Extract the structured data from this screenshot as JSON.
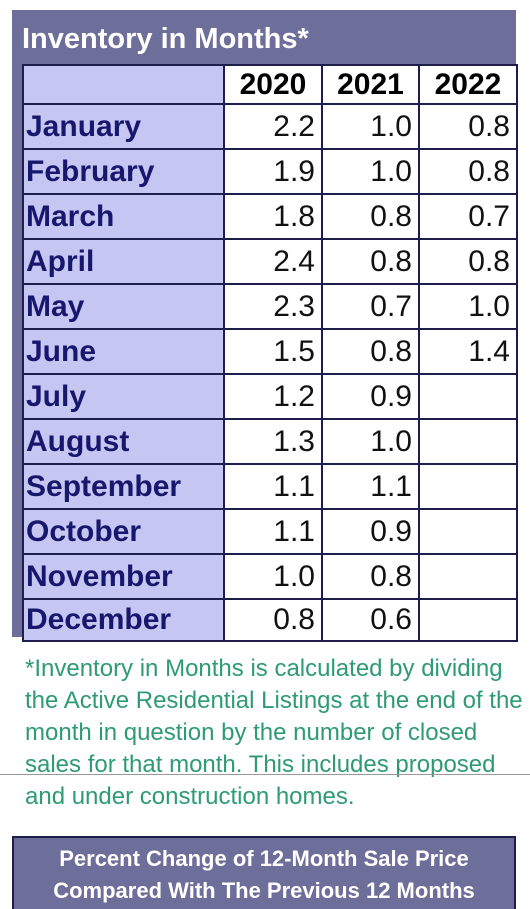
{
  "panel": {
    "title": "Inventory in Months*"
  },
  "table": {
    "years": [
      "2020",
      "2021",
      "2022"
    ],
    "rows": [
      {
        "month": "January",
        "values": [
          "2.2",
          "1.0",
          "0.8"
        ]
      },
      {
        "month": "February",
        "values": [
          "1.9",
          "1.0",
          "0.8"
        ]
      },
      {
        "month": "March",
        "values": [
          "1.8",
          "0.8",
          "0.7"
        ]
      },
      {
        "month": "April",
        "values": [
          "2.4",
          "0.8",
          "0.8"
        ]
      },
      {
        "month": "May",
        "values": [
          "2.3",
          "0.7",
          "1.0"
        ]
      },
      {
        "month": "June",
        "values": [
          "1.5",
          "0.8",
          "1.4"
        ]
      },
      {
        "month": "July",
        "values": [
          "1.2",
          "0.9",
          ""
        ]
      },
      {
        "month": "August",
        "values": [
          "1.3",
          "1.0",
          ""
        ]
      },
      {
        "month": "September",
        "values": [
          "1.1",
          "1.1",
          ""
        ]
      },
      {
        "month": "October",
        "values": [
          "1.1",
          "0.9",
          ""
        ]
      },
      {
        "month": "November",
        "values": [
          "1.0",
          "0.8",
          ""
        ]
      },
      {
        "month": "December",
        "values": [
          "0.8",
          "0.6",
          ""
        ]
      }
    ]
  },
  "footnote": "*Inventory in Months is calculated by dividing the Active Residential Listings at the end of the month in question by the number of closed sales for that month. This includes proposed and under construction homes.",
  "footer": {
    "line1": "Percent Change of 12-Month Sale Price",
    "line2": "Compared With The Previous 12 Months"
  },
  "colors": {
    "panel_bg": "#6e6e9a",
    "month_cell_bg": "#c6c6f2",
    "month_text": "#17176e",
    "footnote_text": "#2e9b73"
  }
}
